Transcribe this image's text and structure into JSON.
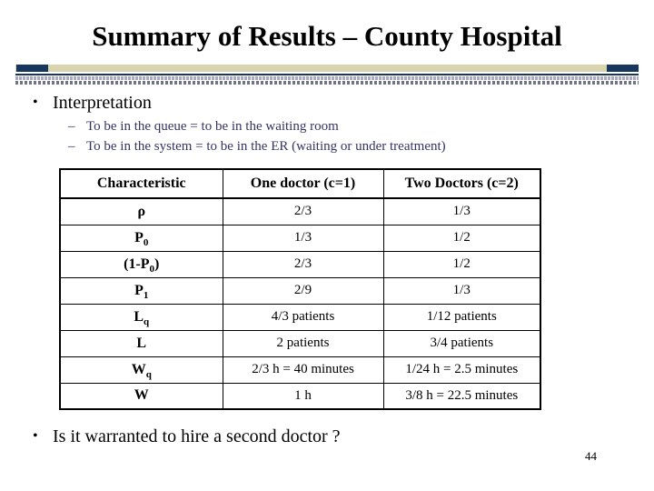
{
  "slide": {
    "title": "Summary of Results – County Hospital",
    "page_number": "44"
  },
  "bullets": {
    "marker": "•",
    "dash": "–",
    "interpretation": "Interpretation",
    "sub_items": [
      "To be in the queue = to be in the waiting room",
      "To be in the system = to be in the ER (waiting or under treatment)"
    ],
    "question": "Is it warranted to hire a second doctor ?"
  },
  "table": {
    "headers": [
      "Characteristic",
      "One doctor (c=1)",
      "Two Doctors (c=2)"
    ],
    "rows": [
      {
        "pre": "",
        "base": "ρ",
        "sub": "",
        "post": "",
        "one_doctor": "2/3",
        "two_doctors": "1/3"
      },
      {
        "pre": "",
        "base": "P",
        "sub": "0",
        "post": "",
        "one_doctor": "1/3",
        "two_doctors": "1/2"
      },
      {
        "pre": "(1-",
        "base": "P",
        "sub": "0",
        "post": ")",
        "one_doctor": "2/3",
        "two_doctors": "1/2"
      },
      {
        "pre": "",
        "base": "P",
        "sub": "1",
        "post": "",
        "one_doctor": "2/9",
        "two_doctors": "1/3"
      },
      {
        "pre": "",
        "base": "L",
        "sub": "q",
        "post": "",
        "one_doctor": "4/3 patients",
        "two_doctors": "1/12 patients"
      },
      {
        "pre": "",
        "base": "L",
        "sub": "",
        "post": "",
        "one_doctor": "2 patients",
        "two_doctors": "3/4 patients"
      },
      {
        "pre": "",
        "base": "W",
        "sub": "q",
        "post": "",
        "one_doctor": "2/3 h = 40 minutes",
        "two_doctors": "1/24 h = 2.5 minutes"
      },
      {
        "pre": "",
        "base": "W",
        "sub": "",
        "post": "",
        "one_doctor": "1 h",
        "two_doctors": "3/8 h = 22.5 minutes"
      }
    ]
  },
  "colors": {
    "navy_accent": "#17375E",
    "tan_accent": "#D8D4AE",
    "sub_bullet_text": "#333366",
    "body_text": "#000000",
    "background": "#FFFFFF"
  }
}
